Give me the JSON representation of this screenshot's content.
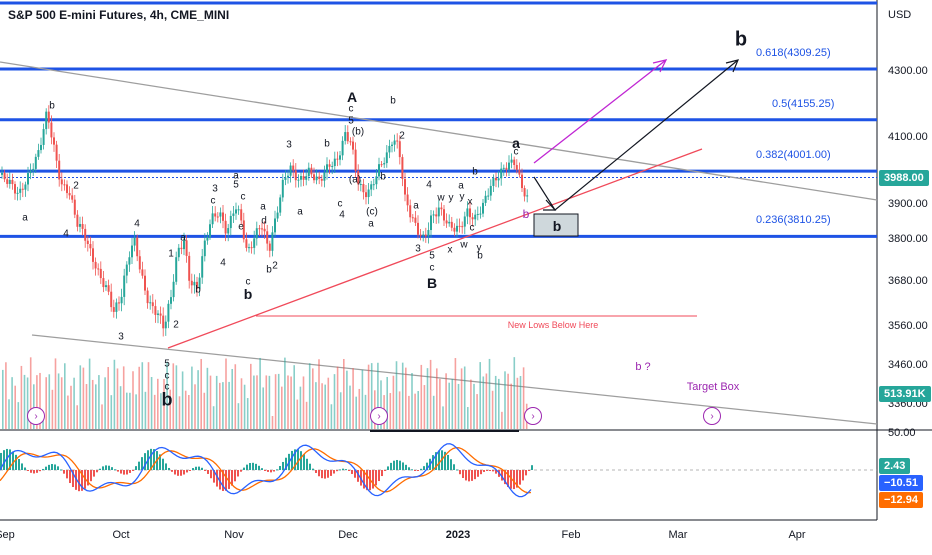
{
  "header": {
    "title": "S&P 500 E-mini Futures, 4h, CME_MINI",
    "currency": "USD"
  },
  "chart_data": {
    "type": "candlestick",
    "title": "S&P 500 E-mini Futures, 4h, CME_MINI",
    "y_unit": "USD",
    "y_ticks": [
      "4300.00",
      "4100.00",
      "3900.00",
      "3800.00",
      "3680.00",
      "3560.00",
      "3460.00",
      "3360.00"
    ],
    "x_ticks": [
      {
        "label": "Sep",
        "bold": false
      },
      {
        "label": "Oct",
        "bold": false
      },
      {
        "label": "Nov",
        "bold": false
      },
      {
        "label": "Dec",
        "bold": false
      },
      {
        "label": "2023",
        "bold": true
      },
      {
        "label": "Feb",
        "bold": false
      },
      {
        "label": "Mar",
        "bold": false
      },
      {
        "label": "Apr",
        "bold": false
      }
    ],
    "fib_levels": [
      {
        "label": "0.618(4309.25)",
        "value": 4309.25
      },
      {
        "label": "0.5(4155.25)",
        "value": 4155.25
      },
      {
        "label": "0.382(4001.00)",
        "value": 4001.0
      },
      {
        "label": "0.236(3810.25)",
        "value": 3810.25
      }
    ],
    "last_price": {
      "label": "3988.00",
      "value": 3988.0,
      "color": "#26a69a"
    },
    "volume_value": "513.91K",
    "oscillator": {
      "scale_label": "50.00",
      "values": [
        {
          "label": "2.43",
          "color": "#26a69a"
        },
        {
          "label": "−10.51",
          "color": "#2962ff"
        },
        {
          "label": "−12.94",
          "color": "#ff6d00"
        }
      ]
    },
    "annotations": {
      "new_lows": "New Lows Below Here",
      "target_box": "Target Box",
      "b_question": "b ?",
      "box_label": "b",
      "projection_label": "b"
    },
    "wave_labels": [
      {
        "t": "b",
        "x": 52,
        "y": 106
      },
      {
        "t": "a",
        "x": 25,
        "y": 218
      },
      {
        "t": "2",
        "x": 76,
        "y": 186
      },
      {
        "t": "4",
        "x": 66,
        "y": 234
      },
      {
        "t": "4",
        "x": 137,
        "y": 224
      },
      {
        "t": "3",
        "x": 121,
        "y": 337
      },
      {
        "t": "2",
        "x": 176,
        "y": 325
      },
      {
        "t": "1",
        "x": 171,
        "y": 254
      },
      {
        "t": "a",
        "x": 183,
        "y": 238
      },
      {
        "t": "b",
        "x": 198,
        "y": 290
      },
      {
        "t": "3",
        "x": 215,
        "y": 189
      },
      {
        "t": "c",
        "x": 213,
        "y": 201
      },
      {
        "t": "a",
        "x": 236,
        "y": 176
      },
      {
        "t": "5",
        "x": 236,
        "y": 185
      },
      {
        "t": "c",
        "x": 243,
        "y": 197
      },
      {
        "t": "e",
        "x": 241,
        "y": 227
      },
      {
        "t": "4",
        "x": 223,
        "y": 263
      },
      {
        "t": "c",
        "x": 248,
        "y": 282
      },
      {
        "t": "d",
        "x": 264,
        "y": 221
      },
      {
        "t": "a",
        "x": 263,
        "y": 207
      },
      {
        "t": "b",
        "x": 269,
        "y": 270
      },
      {
        "t": "2",
        "x": 275,
        "y": 266
      },
      {
        "t": "3",
        "x": 289,
        "y": 145
      },
      {
        "t": "a",
        "x": 300,
        "y": 212
      },
      {
        "t": "b",
        "x": 327,
        "y": 144
      },
      {
        "t": "c",
        "x": 340,
        "y": 204
      },
      {
        "t": "4",
        "x": 342,
        "y": 215
      },
      {
        "t": "(a)",
        "x": 355,
        "y": 180
      },
      {
        "t": "(b)",
        "x": 358,
        "y": 132
      },
      {
        "t": "5",
        "x": 351,
        "y": 121
      },
      {
        "t": "c",
        "x": 351,
        "y": 109
      },
      {
        "t": "(c)",
        "x": 372,
        "y": 212
      },
      {
        "t": "a",
        "x": 371,
        "y": 224
      },
      {
        "t": "b",
        "x": 383,
        "y": 177
      },
      {
        "t": "b",
        "x": 393,
        "y": 101
      },
      {
        "t": "2",
        "x": 402,
        "y": 136
      },
      {
        "t": "4",
        "x": 429,
        "y": 185
      },
      {
        "t": "a",
        "x": 416,
        "y": 206
      },
      {
        "t": "w",
        "x": 441,
        "y": 198
      },
      {
        "t": "y",
        "x": 451,
        "y": 198
      },
      {
        "t": "3",
        "x": 418,
        "y": 249
      },
      {
        "t": "5",
        "x": 432,
        "y": 256
      },
      {
        "t": "c",
        "x": 432,
        "y": 268
      },
      {
        "t": "x",
        "x": 450,
        "y": 250
      },
      {
        "t": "w",
        "x": 464,
        "y": 245
      },
      {
        "t": "y",
        "x": 479,
        "y": 248
      },
      {
        "t": "b",
        "x": 480,
        "y": 256
      },
      {
        "t": "a",
        "x": 461,
        "y": 186
      },
      {
        "t": "y",
        "x": 462,
        "y": 197
      },
      {
        "t": "x",
        "x": 470,
        "y": 202
      },
      {
        "t": "c",
        "x": 472,
        "y": 228
      },
      {
        "t": "b",
        "x": 475,
        "y": 172
      },
      {
        "t": "c",
        "x": 516,
        "y": 152
      },
      {
        "t": "5",
        "x": 167,
        "y": 364
      },
      {
        "t": "c",
        "x": 167,
        "y": 376
      },
      {
        "t": "c",
        "x": 167,
        "y": 387
      }
    ],
    "wave_labels_big": [
      {
        "t": "A",
        "x": 352,
        "y": 97
      },
      {
        "t": "B",
        "x": 432,
        "y": 283
      },
      {
        "t": "a",
        "x": 516,
        "y": 143
      },
      {
        "t": "b",
        "x": 248,
        "y": 294
      }
    ]
  }
}
